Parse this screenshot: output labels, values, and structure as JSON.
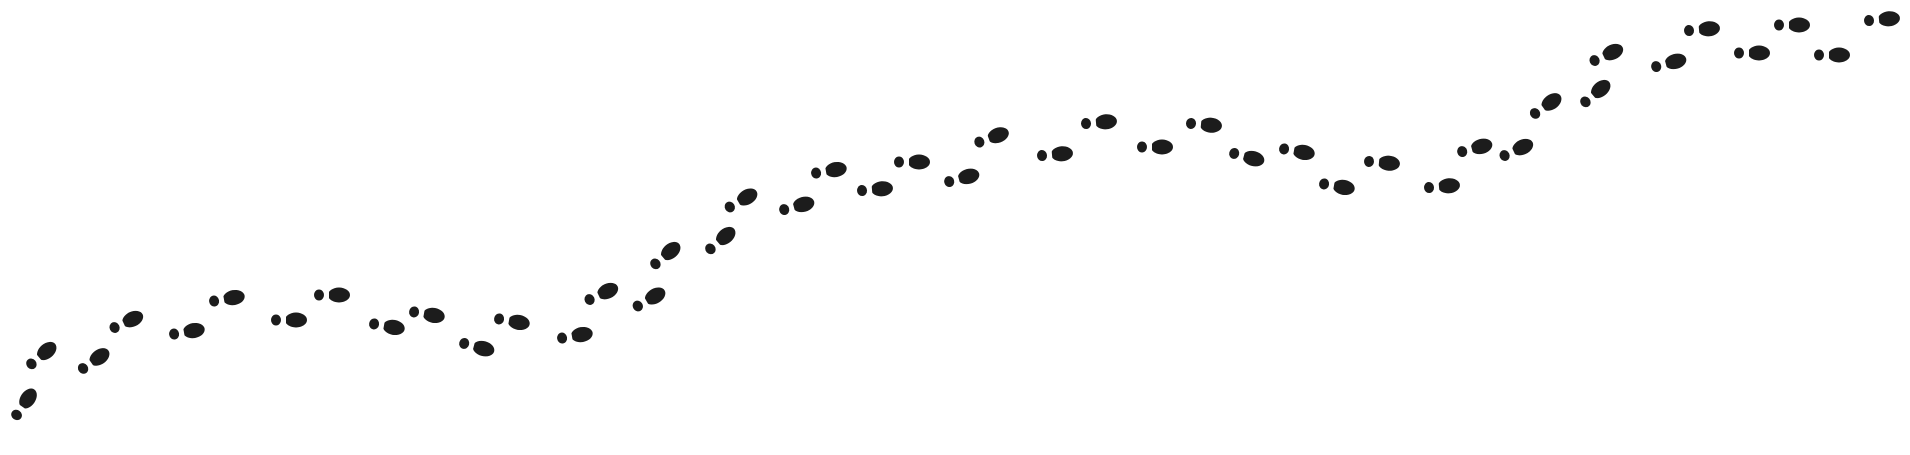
{
  "background_color": "#ffffff",
  "ink_color": "#1c1c1c",
  "motif": "footprints-trail-icon"
}
